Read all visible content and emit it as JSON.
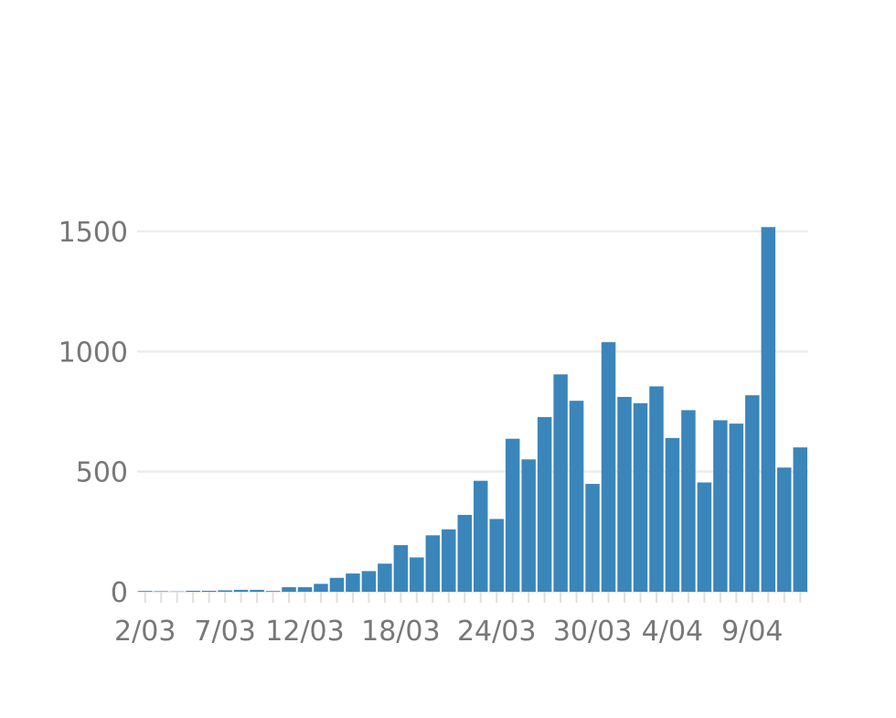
{
  "chart_data": {
    "type": "bar",
    "title": "",
    "xlabel": "",
    "ylabel": "",
    "ylim": [
      0,
      1650
    ],
    "grid": true,
    "colors": {
      "bar": "#3a86ba",
      "grid": "#ececec",
      "text": "#777777"
    },
    "y_ticks": [
      {
        "value": 0,
        "label": "0"
      },
      {
        "value": 500,
        "label": "500"
      },
      {
        "value": 1000,
        "label": "1000"
      },
      {
        "value": 1500,
        "label": "1500"
      }
    ],
    "x_tick_labels": [
      {
        "index": 0,
        "label": "2/03"
      },
      {
        "index": 5,
        "label": "7/03"
      },
      {
        "index": 10,
        "label": "12/03"
      },
      {
        "index": 16,
        "label": "18/03"
      },
      {
        "index": 22,
        "label": "24/03"
      },
      {
        "index": 28,
        "label": "30/03"
      },
      {
        "index": 33,
        "label": "4/04"
      },
      {
        "index": 38,
        "label": "9/04"
      }
    ],
    "categories": [
      "2/03",
      "3/03",
      "4/03",
      "5/03",
      "6/03",
      "7/03",
      "8/03",
      "9/03",
      "10/03",
      "11/03",
      "12/03",
      "13/03",
      "14/03",
      "15/03",
      "16/03",
      "17/03",
      "18/03",
      "19/03",
      "20/03",
      "21/03",
      "22/03",
      "23/03",
      "24/03",
      "25/03",
      "26/03",
      "27/03",
      "28/03",
      "29/03",
      "30/03",
      "31/03",
      "1/04",
      "2/04",
      "3/04",
      "4/04",
      "5/04",
      "6/04",
      "7/04",
      "8/04",
      "9/04",
      "10/04",
      "11/04",
      "12/04"
    ],
    "values": [
      3,
      2,
      1,
      4,
      4,
      6,
      8,
      8,
      3,
      19,
      19,
      33,
      58,
      76,
      86,
      117,
      194,
      143,
      235,
      260,
      320,
      462,
      303,
      637,
      551,
      727,
      905,
      795,
      449,
      1039,
      811,
      785,
      855,
      640,
      756,
      455,
      714,
      700,
      818,
      1518,
      517,
      601
    ]
  }
}
